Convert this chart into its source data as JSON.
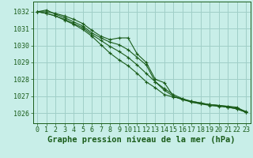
{
  "title": "Graphe pression niveau de la mer (hPa)",
  "background_color": "#c8eee8",
  "plot_bg_color": "#c8eee8",
  "grid_color": "#a0cfc8",
  "line_color": "#1a5c1a",
  "marker_color": "#1a5c1a",
  "xlim": [
    -0.5,
    23.5
  ],
  "ylim": [
    1025.4,
    1032.6
  ],
  "yticks": [
    1026,
    1027,
    1028,
    1029,
    1030,
    1031,
    1032
  ],
  "xticks": [
    0,
    1,
    2,
    3,
    4,
    5,
    6,
    7,
    8,
    9,
    10,
    11,
    12,
    13,
    14,
    15,
    16,
    17,
    18,
    19,
    20,
    21,
    22,
    23
  ],
  "series": [
    [
      1032.0,
      1032.0,
      1031.9,
      1031.75,
      1031.55,
      1031.3,
      1030.9,
      1030.55,
      1030.35,
      1030.45,
      1030.45,
      1029.5,
      1029.0,
      1028.0,
      1027.8,
      1027.0,
      1026.8,
      1026.65,
      1026.55,
      1026.5,
      1026.45,
      1026.4,
      1026.35,
      1026.05
    ],
    [
      1032.0,
      1032.1,
      1031.85,
      1031.65,
      1031.4,
      1031.15,
      1030.75,
      1030.45,
      1030.2,
      1030.05,
      1029.75,
      1029.3,
      1028.85,
      1027.85,
      1027.35,
      1027.0,
      1026.8,
      1026.7,
      1026.6,
      1026.5,
      1026.45,
      1026.4,
      1026.3,
      1026.1
    ],
    [
      1032.0,
      1031.9,
      1031.75,
      1031.55,
      1031.3,
      1031.05,
      1030.65,
      1030.3,
      1029.95,
      1029.65,
      1029.3,
      1028.85,
      1028.35,
      1027.85,
      1027.45,
      1027.1,
      1026.85,
      1026.7,
      1026.6,
      1026.5,
      1026.45,
      1026.35,
      1026.25,
      1026.05
    ],
    [
      1032.0,
      1031.9,
      1031.75,
      1031.5,
      1031.25,
      1030.95,
      1030.55,
      1030.05,
      1029.55,
      1029.15,
      1028.8,
      1028.35,
      1027.85,
      1027.5,
      1027.1,
      1026.95,
      1026.85,
      1026.65,
      1026.55,
      1026.45,
      1026.4,
      1026.35,
      1026.25,
      1026.05
    ]
  ],
  "title_fontsize": 7.5,
  "tick_fontsize": 6,
  "title_color": "#1a5c1a",
  "tick_color": "#1a5c1a",
  "spine_color": "#1a5c1a"
}
